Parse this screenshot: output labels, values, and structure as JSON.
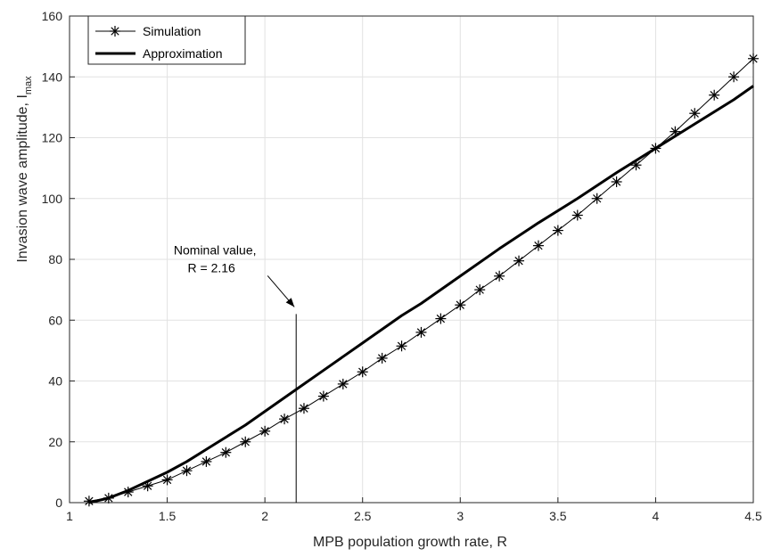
{
  "chart_data": {
    "type": "line",
    "xlabel": "MPB population growth rate, R",
    "ylabel_main": "Invasion wave amplitude, I",
    "ylabel_sub": "max",
    "xlim": [
      1,
      4.5
    ],
    "ylim": [
      0,
      160
    ],
    "grid": true,
    "legend_position": "top-left",
    "x_ticks": [
      "1",
      "1.5",
      "2",
      "2.5",
      "3",
      "3.5",
      "4",
      "4.5"
    ],
    "y_ticks": [
      "0",
      "20",
      "40",
      "60",
      "80",
      "100",
      "120",
      "140",
      "160"
    ],
    "series": [
      {
        "name": "Simulation",
        "style": "thin line with asterisk markers",
        "color": "#000000",
        "x": [
          1.1,
          1.2,
          1.3,
          1.4,
          1.5,
          1.6,
          1.7,
          1.8,
          1.9,
          2.0,
          2.1,
          2.2,
          2.3,
          2.4,
          2.5,
          2.6,
          2.7,
          2.8,
          2.9,
          3.0,
          3.1,
          3.2,
          3.3,
          3.4,
          3.5,
          3.6,
          3.7,
          3.8,
          3.9,
          4.0,
          4.1,
          4.2,
          4.3,
          4.4,
          4.5
        ],
        "y": [
          0.5,
          1.5,
          3.5,
          5.5,
          7.5,
          10.5,
          13.5,
          16.5,
          20,
          23.5,
          27.5,
          31,
          35,
          39,
          43,
          47.5,
          51.5,
          56,
          60.5,
          65,
          70,
          74.5,
          79.5,
          84.5,
          89.5,
          94.5,
          100,
          105.5,
          111,
          116.5,
          122,
          128,
          134,
          140,
          146
        ]
      },
      {
        "name": "Approximation",
        "style": "thick solid line",
        "color": "#000000",
        "x": [
          1.1,
          1.2,
          1.3,
          1.4,
          1.5,
          1.6,
          1.7,
          1.8,
          1.9,
          2.0,
          2.1,
          2.2,
          2.3,
          2.4,
          2.5,
          2.6,
          2.7,
          2.8,
          2.9,
          3.0,
          3.2,
          3.4,
          3.6,
          3.8,
          4.0,
          4.2,
          4.4,
          4.5
        ],
        "y": [
          0,
          1.5,
          4,
          7,
          10,
          13.5,
          17.5,
          21.5,
          25.5,
          30,
          34.5,
          39,
          43.5,
          48,
          52.5,
          57,
          61.5,
          65.5,
          70,
          74.5,
          83.5,
          92,
          100,
          108.5,
          116.5,
          124.5,
          132.5,
          137
        ]
      }
    ],
    "annotation": {
      "line1": "Nominal value,",
      "line2": "R = 2.16",
      "x": 2.16,
      "y_top": 62
    }
  }
}
